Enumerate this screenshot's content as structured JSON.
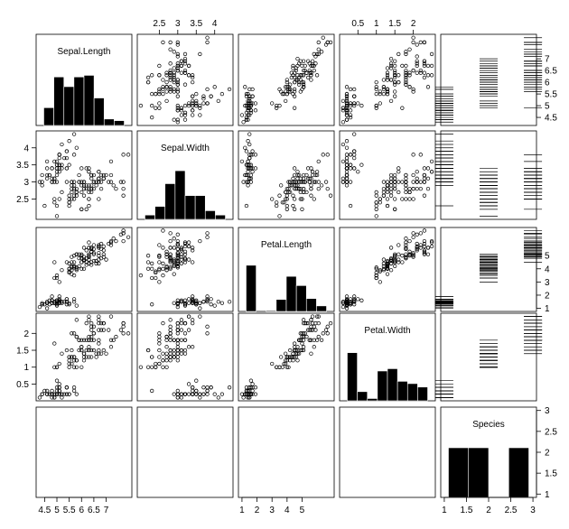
{
  "chart_data": {
    "type": "scatter",
    "variables": [
      {
        "name": "Sepal.Length",
        "range": [
          4.3,
          7.9
        ],
        "ticks": [
          "4.5",
          "5",
          "5.5",
          "6",
          "6.5",
          "7"
        ]
      },
      {
        "name": "Sepal.Width",
        "range": [
          2.0,
          4.4
        ],
        "ticks": [
          "2.5",
          "3",
          "3.5",
          "4"
        ]
      },
      {
        "name": "Petal.Length",
        "range": [
          1.0,
          6.9
        ],
        "ticks": [
          "1",
          "2",
          "3",
          "4",
          "5"
        ]
      },
      {
        "name": "Petal.Width",
        "range": [
          0.1,
          2.5
        ],
        "ticks": [
          "0.5",
          "1",
          "1.5",
          "2"
        ]
      },
      {
        "name": "Species",
        "range": [
          1,
          3
        ],
        "ticks": [
          "1",
          "1.5",
          "2",
          "2.5",
          "3"
        ]
      }
    ],
    "histograms": {
      "Sepal.Length": {
        "edges": [
          4.3,
          4.75,
          5.2,
          5.65,
          6.1,
          6.55,
          7.0,
          7.45,
          7.9
        ],
        "counts": [
          11,
          30,
          24,
          30,
          31,
          17,
          4,
          3
        ]
      },
      "Sepal.Width": {
        "edges": [
          2.0,
          2.3,
          2.6,
          2.9,
          3.2,
          3.5,
          3.8,
          4.1,
          4.4
        ],
        "counts": [
          4,
          12,
          33,
          45,
          22,
          22,
          8,
          4
        ]
      },
      "Petal.Length": {
        "edges": [
          1.0,
          1.737,
          2.475,
          3.212,
          3.95,
          4.688,
          5.425,
          6.162,
          6.9
        ],
        "counts": [
          50,
          0,
          1,
          13,
          38,
          28,
          14,
          6
        ]
      },
      "Petal.Width": {
        "edges": [
          0.1,
          0.4,
          0.7,
          1.0,
          1.3,
          1.6,
          1.9,
          2.2,
          2.5
        ],
        "counts": [
          42,
          8,
          2,
          26,
          28,
          17,
          15,
          12
        ]
      },
      "Species": {
        "edges": [
          1,
          1.5,
          2,
          2.5,
          3
        ],
        "counts": [
          50,
          50,
          0,
          50
        ]
      }
    },
    "observations": {
      "Sepal.Length": [
        5.1,
        4.9,
        4.7,
        4.6,
        5.0,
        5.4,
        4.6,
        5.0,
        4.4,
        4.9,
        5.4,
        4.8,
        4.8,
        4.3,
        5.8,
        5.7,
        5.4,
        5.1,
        5.7,
        5.1,
        5.4,
        5.1,
        4.6,
        5.1,
        4.8,
        5.0,
        5.0,
        5.2,
        5.2,
        4.7,
        4.8,
        5.4,
        5.2,
        5.5,
        4.9,
        5.0,
        5.5,
        4.9,
        4.4,
        5.1,
        5.0,
        4.5,
        4.4,
        5.0,
        5.1,
        4.8,
        5.1,
        4.6,
        5.3,
        5.0,
        7.0,
        6.4,
        6.9,
        5.5,
        6.5,
        5.7,
        6.3,
        4.9,
        6.6,
        5.2,
        5.0,
        5.9,
        6.0,
        6.1,
        5.6,
        6.7,
        5.6,
        5.8,
        6.2,
        5.6,
        5.9,
        6.1,
        6.3,
        6.1,
        6.4,
        6.6,
        6.8,
        6.7,
        6.0,
        5.7,
        5.5,
        5.5,
        5.8,
        6.0,
        5.4,
        6.0,
        6.7,
        6.3,
        5.6,
        5.5,
        5.5,
        6.1,
        5.8,
        5.0,
        5.6,
        5.7,
        5.7,
        6.2,
        5.1,
        5.7,
        6.3,
        5.8,
        7.1,
        6.3,
        6.5,
        7.6,
        4.9,
        7.3,
        6.7,
        7.2,
        6.5,
        6.4,
        6.8,
        5.7,
        5.8,
        6.4,
        6.5,
        7.7,
        7.7,
        6.0,
        6.9,
        5.6,
        7.7,
        6.3,
        6.7,
        7.2,
        6.2,
        6.1,
        6.4,
        7.2,
        7.4,
        7.9,
        6.4,
        6.3,
        6.1,
        7.7,
        6.3,
        6.4,
        6.0,
        6.9,
        6.7,
        6.9,
        5.8,
        6.8,
        6.7,
        6.7,
        6.3,
        6.5,
        6.2,
        5.9
      ],
      "Sepal.Width": [
        3.5,
        3.0,
        3.2,
        3.1,
        3.6,
        3.9,
        3.4,
        3.4,
        2.9,
        3.1,
        3.7,
        3.4,
        3.0,
        3.0,
        4.0,
        4.4,
        3.9,
        3.5,
        3.8,
        3.8,
        3.4,
        3.7,
        3.6,
        3.3,
        3.4,
        3.0,
        3.4,
        3.5,
        3.4,
        3.2,
        3.1,
        3.4,
        4.1,
        4.2,
        3.1,
        3.2,
        3.5,
        3.6,
        3.0,
        3.4,
        3.5,
        2.3,
        3.2,
        3.5,
        3.8,
        3.0,
        3.8,
        3.2,
        3.7,
        3.3,
        3.2,
        3.2,
        3.1,
        2.3,
        2.8,
        2.8,
        3.3,
        2.4,
        2.9,
        2.7,
        2.0,
        3.0,
        2.2,
        2.9,
        2.9,
        3.1,
        3.0,
        2.7,
        2.2,
        2.5,
        3.2,
        2.8,
        2.5,
        2.8,
        2.9,
        3.0,
        2.8,
        3.0,
        2.9,
        2.6,
        2.4,
        2.4,
        2.7,
        2.7,
        3.0,
        3.4,
        3.1,
        2.3,
        3.0,
        2.5,
        2.6,
        3.0,
        2.6,
        2.3,
        2.7,
        3.0,
        2.9,
        2.9,
        2.5,
        2.8,
        3.3,
        2.7,
        3.0,
        2.9,
        3.0,
        3.0,
        2.5,
        2.9,
        2.5,
        3.6,
        3.2,
        2.7,
        3.0,
        2.5,
        2.8,
        3.2,
        3.0,
        3.8,
        2.6,
        2.2,
        3.2,
        2.8,
        2.8,
        2.7,
        3.3,
        3.2,
        2.8,
        3.0,
        2.8,
        3.0,
        2.8,
        3.8,
        2.8,
        2.8,
        2.6,
        3.0,
        3.4,
        3.1,
        3.0,
        3.1,
        3.1,
        3.1,
        2.7,
        3.2,
        3.3,
        3.0,
        2.5,
        3.0,
        3.4,
        3.0
      ],
      "Petal.Length": [
        1.4,
        1.4,
        1.3,
        1.5,
        1.4,
        1.7,
        1.4,
        1.5,
        1.4,
        1.5,
        1.5,
        1.6,
        1.4,
        1.1,
        1.2,
        1.5,
        1.3,
        1.4,
        1.7,
        1.5,
        1.7,
        1.5,
        1.0,
        1.7,
        1.9,
        1.6,
        1.6,
        1.5,
        1.4,
        1.6,
        1.6,
        1.5,
        1.5,
        1.4,
        1.5,
        1.2,
        1.3,
        1.4,
        1.3,
        1.5,
        1.3,
        1.3,
        1.3,
        1.6,
        1.9,
        1.4,
        1.6,
        1.4,
        1.5,
        1.4,
        4.7,
        4.5,
        4.9,
        4.0,
        4.6,
        4.5,
        4.7,
        3.3,
        4.6,
        3.9,
        3.5,
        4.2,
        4.0,
        4.7,
        3.6,
        4.4,
        4.5,
        4.1,
        4.5,
        3.9,
        4.8,
        4.0,
        4.9,
        4.7,
        4.3,
        4.4,
        4.8,
        5.0,
        4.5,
        3.5,
        3.8,
        3.7,
        3.9,
        5.1,
        4.5,
        4.5,
        4.7,
        4.4,
        4.1,
        4.0,
        4.4,
        4.6,
        4.0,
        3.3,
        4.2,
        4.2,
        4.2,
        4.3,
        3.0,
        4.1,
        6.0,
        5.1,
        5.9,
        5.6,
        5.8,
        6.6,
        4.5,
        6.3,
        5.8,
        6.1,
        5.1,
        5.3,
        5.5,
        5.0,
        5.1,
        5.3,
        5.5,
        6.7,
        6.9,
        5.0,
        5.7,
        4.9,
        6.7,
        4.9,
        5.7,
        6.0,
        4.8,
        4.9,
        5.6,
        5.8,
        6.1,
        6.4,
        5.6,
        5.1,
        5.6,
        6.1,
        5.6,
        5.5,
        4.8,
        5.4,
        5.6,
        5.1,
        5.1,
        5.9,
        5.7,
        5.2,
        5.0,
        5.2,
        5.4,
        5.1
      ],
      "Petal.Width": [
        0.2,
        0.2,
        0.2,
        0.2,
        0.2,
        0.4,
        0.3,
        0.2,
        0.2,
        0.1,
        0.2,
        0.2,
        0.1,
        0.1,
        0.2,
        0.4,
        0.4,
        0.3,
        0.3,
        0.3,
        0.2,
        0.4,
        0.2,
        0.5,
        0.2,
        0.2,
        0.4,
        0.2,
        0.2,
        0.2,
        0.2,
        0.4,
        0.1,
        0.2,
        0.2,
        0.2,
        0.2,
        0.1,
        0.2,
        0.2,
        0.3,
        0.3,
        0.2,
        0.6,
        0.4,
        0.3,
        0.2,
        0.2,
        0.2,
        0.2,
        1.4,
        1.5,
        1.5,
        1.3,
        1.5,
        1.3,
        1.6,
        1.0,
        1.3,
        1.4,
        1.0,
        1.5,
        1.0,
        1.4,
        1.3,
        1.4,
        1.5,
        1.0,
        1.5,
        1.1,
        1.8,
        1.3,
        1.5,
        1.2,
        1.3,
        1.4,
        1.4,
        1.7,
        1.5,
        1.0,
        1.1,
        1.0,
        1.2,
        1.6,
        1.5,
        1.6,
        1.5,
        1.3,
        1.3,
        1.3,
        1.2,
        1.4,
        1.2,
        1.0,
        1.3,
        1.2,
        1.3,
        1.3,
        1.1,
        1.3,
        2.5,
        1.9,
        2.1,
        1.8,
        2.2,
        2.1,
        1.7,
        1.8,
        1.8,
        2.5,
        2.0,
        1.9,
        2.1,
        2.0,
        2.4,
        2.3,
        1.8,
        2.2,
        2.3,
        1.5,
        2.3,
        2.0,
        2.0,
        1.8,
        2.1,
        1.8,
        1.8,
        1.8,
        2.1,
        1.6,
        1.9,
        2.0,
        2.2,
        1.5,
        1.4,
        2.3,
        2.4,
        1.8,
        1.8,
        2.1,
        2.4,
        2.3,
        1.9,
        2.3,
        2.5,
        2.3,
        1.9,
        2.0,
        2.3,
        1.8
      ],
      "Species": [
        1,
        1,
        1,
        1,
        1,
        1,
        1,
        1,
        1,
        1,
        1,
        1,
        1,
        1,
        1,
        1,
        1,
        1,
        1,
        1,
        1,
        1,
        1,
        1,
        1,
        1,
        1,
        1,
        1,
        1,
        1,
        1,
        1,
        1,
        1,
        1,
        1,
        1,
        1,
        1,
        1,
        1,
        1,
        1,
        1,
        1,
        1,
        1,
        1,
        1,
        2,
        2,
        2,
        2,
        2,
        2,
        2,
        2,
        2,
        2,
        2,
        2,
        2,
        2,
        2,
        2,
        2,
        2,
        2,
        2,
        2,
        2,
        2,
        2,
        2,
        2,
        2,
        2,
        2,
        2,
        2,
        2,
        2,
        2,
        2,
        2,
        2,
        2,
        2,
        2,
        2,
        2,
        2,
        2,
        2,
        2,
        2,
        2,
        2,
        2,
        3,
        3,
        3,
        3,
        3,
        3,
        3,
        3,
        3,
        3,
        3,
        3,
        3,
        3,
        3,
        3,
        3,
        3,
        3,
        3,
        3,
        3,
        3,
        3,
        3,
        3,
        3,
        3,
        3,
        3,
        3,
        3,
        3,
        3,
        3,
        3,
        3,
        3,
        3,
        3,
        3,
        3,
        3,
        3,
        3,
        3,
        3,
        3,
        3,
        3
      ]
    },
    "grid": false,
    "legend": "none"
  }
}
